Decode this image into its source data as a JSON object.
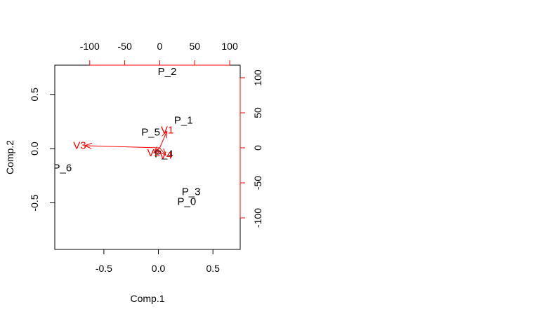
{
  "chart_data": {
    "type": "scatter",
    "subtype": "biplot",
    "xlabel": "Comp.1",
    "ylabel": "Comp.2",
    "xlim": [
      -0.95,
      0.75
    ],
    "ylim": [
      -0.93,
      0.77
    ],
    "xticks": [
      -0.5,
      0.0,
      0.5
    ],
    "xtick_labels": [
      "-0.5",
      "0.0",
      "0.5"
    ],
    "yticks": [
      -0.5,
      0.0,
      0.5
    ],
    "ytick_labels": [
      "-0.5",
      "0.0",
      "0.5"
    ],
    "secondary_x_lim": [
      -150,
      115
    ],
    "secondary_y_lim": [
      -145,
      118
    ],
    "secondary_xticks": [
      -100,
      -50,
      0,
      50,
      100
    ],
    "secondary_xtick_labels": [
      "-100",
      "-50",
      "0",
      "50",
      "100"
    ],
    "secondary_yticks": [
      -100,
      -50,
      0,
      50,
      100
    ],
    "secondary_ytick_labels": [
      "-100",
      "-50",
      "0",
      "50",
      "100"
    ],
    "points": [
      {
        "label": "P_0",
        "x": 0.26,
        "y": -0.49
      },
      {
        "label": "P_1",
        "x": 0.23,
        "y": 0.26
      },
      {
        "label": "P_2",
        "x": 0.08,
        "y": 0.71
      },
      {
        "label": "P_3",
        "x": 0.3,
        "y": -0.4
      },
      {
        "label": "P_4",
        "x": 0.05,
        "y": -0.05
      },
      {
        "label": "P_5",
        "x": -0.07,
        "y": 0.15
      },
      {
        "label": "P_6",
        "x": -0.88,
        "y": -0.18
      }
    ],
    "variables": [
      {
        "label": "V1",
        "x": 10,
        "y": 23
      },
      {
        "label": "V2",
        "x": -8,
        "y": -7
      },
      {
        "label": "V3",
        "x": -106,
        "y": 3
      },
      {
        "label": "V4",
        "x": 8,
        "y": -10
      }
    ],
    "colors": {
      "points": "#000000",
      "variables": "#ff0000",
      "axes": "#000000"
    }
  }
}
